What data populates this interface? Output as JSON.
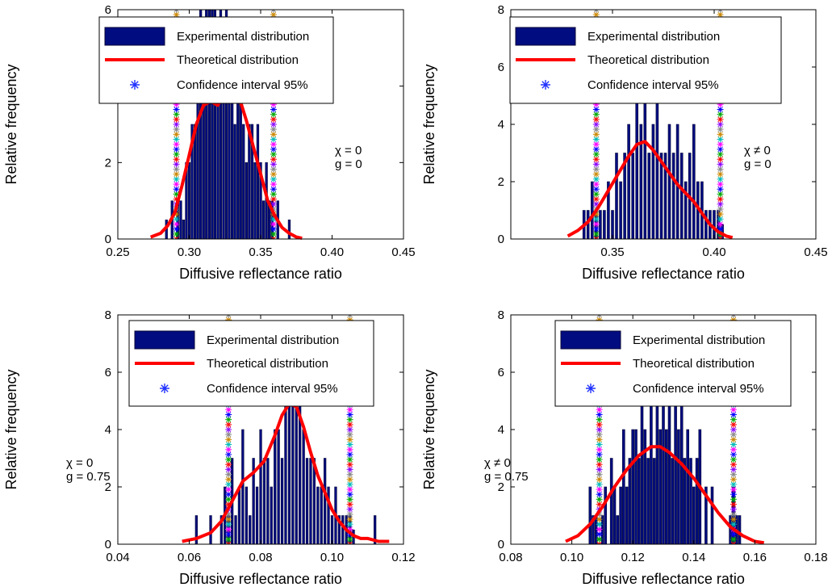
{
  "chart_data": [
    {
      "type": "bar",
      "xlabel": "Diffusive reflectance ratio",
      "ylabel": "Relative frequency",
      "xlim": [
        0.25,
        0.45
      ],
      "ylim": [
        0,
        6
      ],
      "xticks": [
        "0.25",
        "0.30",
        "0.35",
        "0.40",
        "0.45"
      ],
      "xtick_values": [
        0.25,
        0.3,
        0.35,
        0.4,
        0.45
      ],
      "yticks": [
        "0",
        "2",
        "4",
        "6"
      ],
      "ytick_values": [
        0,
        2,
        4,
        6
      ],
      "legend": [
        "Experimental distribution",
        "Theoretical distribution",
        "Confidence interval 95%"
      ],
      "legend_position": "top",
      "annotation": [
        "χ = 0",
        "g = 0"
      ],
      "bin_width": 0.0015,
      "bars": {
        "x": [
          0.284,
          0.288,
          0.292,
          0.294,
          0.296,
          0.298,
          0.3,
          0.302,
          0.304,
          0.306,
          0.308,
          0.31,
          0.312,
          0.314,
          0.316,
          0.318,
          0.32,
          0.322,
          0.324,
          0.326,
          0.328,
          0.33,
          0.332,
          0.334,
          0.336,
          0.338,
          0.34,
          0.342,
          0.344,
          0.346,
          0.348,
          0.35,
          0.352,
          0.354,
          0.356,
          0.358,
          0.362,
          0.37
        ],
        "values": [
          0.5,
          1,
          1,
          1,
          0.5,
          2,
          2,
          3,
          3,
          4,
          6,
          5,
          6,
          6,
          6,
          6,
          4,
          6,
          4,
          6,
          5,
          4,
          3,
          4,
          5,
          3,
          2,
          3,
          3,
          2,
          3,
          2,
          1,
          2,
          1,
          1,
          1,
          0.5
        ]
      },
      "curve": {
        "x": [
          0.273,
          0.28,
          0.285,
          0.29,
          0.295,
          0.3,
          0.305,
          0.31,
          0.315,
          0.32,
          0.325,
          0.33,
          0.335,
          0.34,
          0.345,
          0.35,
          0.355,
          0.36,
          0.365,
          0.37,
          0.375,
          0.379
        ],
        "y": [
          0.05,
          0.15,
          0.35,
          0.7,
          1.4,
          2.2,
          3.0,
          3.5,
          3.6,
          3.5,
          3.8,
          4.2,
          3.7,
          3.1,
          2.4,
          1.7,
          1.0,
          0.6,
          0.3,
          0.15,
          0.05,
          0.02
        ]
      },
      "ci": [
        0.291,
        0.359
      ]
    },
    {
      "type": "bar",
      "xlabel": "Diffusive reflectance ratio",
      "ylabel": "Relative frequency",
      "xlim": [
        0.3,
        0.45
      ],
      "ylim": [
        0,
        8
      ],
      "xticks": [
        "0.35",
        "0.40",
        "0.45"
      ],
      "xtick_values": [
        0.35,
        0.4,
        0.45
      ],
      "yticks": [
        "0",
        "2",
        "4",
        "6",
        "8"
      ],
      "ytick_values": [
        0,
        2,
        4,
        6,
        8
      ],
      "legend": [
        "Experimental distribution",
        "Theoretical distribution",
        "Confidence interval 95%"
      ],
      "legend_position": "top",
      "annotation": [
        "χ ≠ 0",
        "g = 0"
      ],
      "bin_width": 0.0012,
      "bars": {
        "x": [
          0.336,
          0.338,
          0.34,
          0.342,
          0.344,
          0.346,
          0.348,
          0.35,
          0.352,
          0.354,
          0.356,
          0.358,
          0.36,
          0.362,
          0.364,
          0.366,
          0.368,
          0.37,
          0.372,
          0.374,
          0.376,
          0.378,
          0.38,
          0.382,
          0.384,
          0.386,
          0.388,
          0.39,
          0.392,
          0.394,
          0.396,
          0.398,
          0.4,
          0.402,
          0.404
        ],
        "values": [
          1,
          1,
          2,
          1,
          1,
          1,
          2,
          1,
          3,
          2,
          3,
          4,
          3,
          5,
          4,
          5,
          3,
          4,
          5,
          3,
          3,
          4,
          3,
          4,
          3,
          2,
          3,
          4,
          2,
          2,
          1,
          1,
          1,
          1,
          0.5
        ]
      },
      "curve": {
        "x": [
          0.328,
          0.333,
          0.338,
          0.343,
          0.348,
          0.353,
          0.358,
          0.362,
          0.366,
          0.37,
          0.374,
          0.378,
          0.382,
          0.386,
          0.39,
          0.394,
          0.398,
          0.402,
          0.406,
          0.409
        ],
        "y": [
          0.1,
          0.3,
          0.6,
          1.1,
          1.7,
          2.3,
          2.9,
          3.3,
          3.4,
          3.1,
          2.7,
          2.3,
          1.9,
          1.6,
          1.3,
          0.9,
          0.5,
          0.25,
          0.1,
          0.05
        ]
      },
      "ci": [
        0.342,
        0.403
      ]
    },
    {
      "type": "bar",
      "xlabel": "Diffusive reflectance ratio",
      "ylabel": "Relative frequency",
      "xlim": [
        0.04,
        0.12
      ],
      "ylim": [
        0,
        8
      ],
      "xticks": [
        "0.04",
        "0.06",
        "0.08",
        "0.10",
        "0.12"
      ],
      "xtick_values": [
        0.04,
        0.06,
        0.08,
        0.1,
        0.12
      ],
      "yticks": [
        "0",
        "2",
        "4",
        "6",
        "8"
      ],
      "ytick_values": [
        0,
        2,
        4,
        6,
        8
      ],
      "legend": [
        "Experimental distribution",
        "Theoretical distribution",
        "Confidence interval 95%"
      ],
      "legend_position": "top",
      "annotation": [
        "χ = 0",
        "g = 0.75"
      ],
      "bin_width": 0.0006,
      "bars": {
        "x": [
          0.062,
          0.066,
          0.069,
          0.07,
          0.071,
          0.072,
          0.073,
          0.074,
          0.075,
          0.076,
          0.077,
          0.078,
          0.079,
          0.08,
          0.081,
          0.082,
          0.083,
          0.084,
          0.085,
          0.086,
          0.087,
          0.088,
          0.089,
          0.09,
          0.091,
          0.092,
          0.093,
          0.094,
          0.095,
          0.096,
          0.097,
          0.098,
          0.099,
          0.1,
          0.101,
          0.102,
          0.103,
          0.104,
          0.105,
          0.106,
          0.112
        ],
        "values": [
          1,
          1,
          1,
          2,
          1,
          3,
          1,
          2,
          4,
          2,
          1,
          3,
          2,
          4,
          3,
          3,
          2,
          4,
          4,
          3,
          6,
          5,
          5,
          6,
          5,
          4,
          3,
          3,
          3,
          2,
          2,
          3,
          2,
          1,
          2,
          1,
          1,
          1,
          1,
          0.5,
          1
        ]
      },
      "curve": {
        "x": [
          0.058,
          0.062,
          0.066,
          0.069,
          0.072,
          0.075,
          0.078,
          0.081,
          0.084,
          0.086,
          0.088,
          0.09,
          0.092,
          0.094,
          0.096,
          0.098,
          0.1,
          0.102,
          0.104,
          0.106,
          0.108,
          0.11,
          0.113,
          0.116
        ],
        "y": [
          0.1,
          0.2,
          0.4,
          0.8,
          1.5,
          2.2,
          2.5,
          2.9,
          3.8,
          4.5,
          4.9,
          4.8,
          4.1,
          3.2,
          2.4,
          1.8,
          1.2,
          0.8,
          0.5,
          0.3,
          0.2,
          0.2,
          0.1,
          0.1
        ]
      },
      "ci": [
        0.071,
        0.105
      ]
    },
    {
      "type": "bar",
      "xlabel": "Diffusive reflectance ratio",
      "ylabel": "Relative frequency",
      "xlim": [
        0.08,
        0.18
      ],
      "ylim": [
        0,
        8
      ],
      "xticks": [
        "0.08",
        "0.10",
        "0.12",
        "0.14",
        "0.16",
        "0.18"
      ],
      "xtick_values": [
        0.08,
        0.1,
        0.12,
        0.14,
        0.16,
        0.18
      ],
      "yticks": [
        "0",
        "2",
        "4",
        "6",
        "8"
      ],
      "ytick_values": [
        0,
        2,
        4,
        6,
        8
      ],
      "legend": [
        "Experimental distribution",
        "Theoretical distribution",
        "Confidence interval 95%"
      ],
      "legend_position": "top",
      "annotation": [
        "χ ≠ 0",
        "g = 0.75"
      ],
      "bin_width": 0.0008,
      "bars": {
        "x": [
          0.106,
          0.107,
          0.108,
          0.11,
          0.111,
          0.113,
          0.114,
          0.115,
          0.116,
          0.117,
          0.118,
          0.119,
          0.12,
          0.121,
          0.122,
          0.123,
          0.124,
          0.125,
          0.126,
          0.127,
          0.128,
          0.129,
          0.13,
          0.131,
          0.132,
          0.133,
          0.134,
          0.135,
          0.136,
          0.137,
          0.138,
          0.139,
          0.14,
          0.141,
          0.142,
          0.144,
          0.146,
          0.152,
          0.153,
          0.154,
          0.155
        ],
        "values": [
          2,
          1,
          1,
          1,
          2,
          3,
          2,
          1,
          2,
          4,
          2,
          3,
          4,
          4,
          3,
          5,
          4,
          3,
          6,
          3,
          6,
          4,
          5,
          4,
          6,
          3,
          5,
          4,
          5,
          3,
          4,
          3,
          2,
          3,
          4,
          2,
          2,
          1,
          2,
          1,
          1
        ]
      },
      "curve": {
        "x": [
          0.098,
          0.102,
          0.106,
          0.11,
          0.114,
          0.118,
          0.122,
          0.126,
          0.129,
          0.132,
          0.136,
          0.14,
          0.144,
          0.148,
          0.152,
          0.156,
          0.16,
          0.163
        ],
        "y": [
          0.1,
          0.3,
          0.7,
          1.3,
          2.0,
          2.6,
          3.1,
          3.4,
          3.4,
          3.2,
          2.8,
          2.3,
          1.7,
          1.1,
          0.6,
          0.3,
          0.1,
          0.05
        ]
      },
      "ci": [
        0.109,
        0.153
      ]
    }
  ]
}
